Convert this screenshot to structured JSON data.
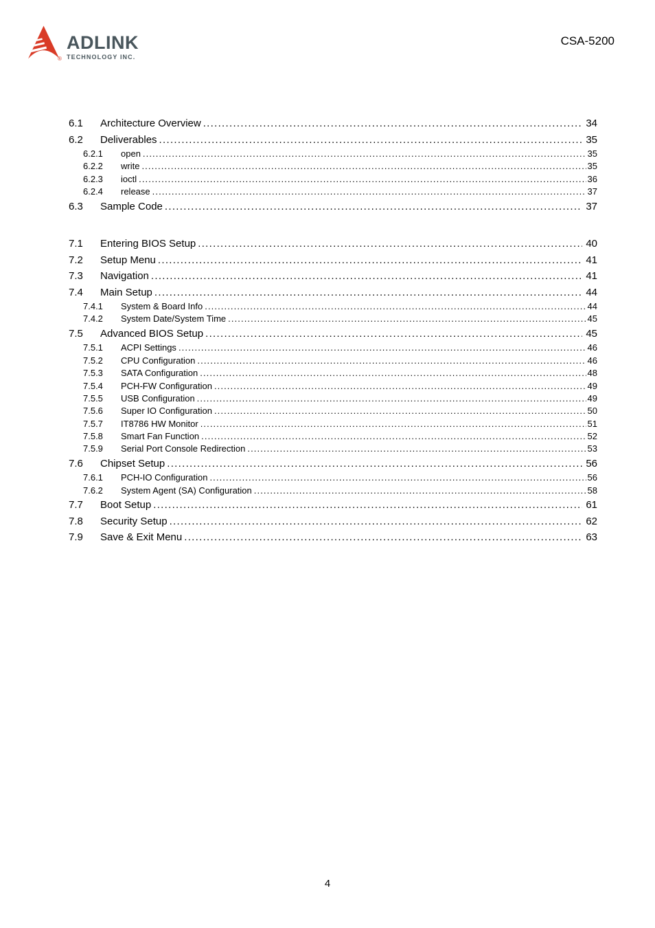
{
  "header": {
    "logo": {
      "brand": "ADLINK",
      "subbrand": "TECHNOLOGY INC.",
      "registered_mark": "®",
      "red": "#d93b27",
      "gray": "#49565c"
    },
    "doc_title": "CSA-5200"
  },
  "toc": {
    "groups": [
      {
        "entries": [
          {
            "level": 1,
            "number": "6.1",
            "title": "Architecture Overview",
            "page": "34"
          },
          {
            "level": 1,
            "number": "6.2",
            "title": "Deliverables",
            "page": "35"
          },
          {
            "level": 2,
            "number": "6.2.1",
            "title": "open",
            "page": "35"
          },
          {
            "level": 2,
            "number": "6.2.2",
            "title": "write",
            "page": "35"
          },
          {
            "level": 2,
            "number": "6.2.3",
            "title": "ioctl",
            "page": "36"
          },
          {
            "level": 2,
            "number": "6.2.4",
            "title": "release",
            "page": "37"
          },
          {
            "level": 1,
            "number": "6.3",
            "title": "Sample Code",
            "page": "37"
          }
        ]
      },
      {
        "entries": [
          {
            "level": 1,
            "number": "7.1",
            "title": "Entering BIOS Setup",
            "page": "40"
          },
          {
            "level": 1,
            "number": "7.2",
            "title": "Setup Menu",
            "page": "41"
          },
          {
            "level": 1,
            "number": "7.3",
            "title": "Navigation",
            "page": "41"
          },
          {
            "level": 1,
            "number": "7.4",
            "title": "Main Setup",
            "page": "44"
          },
          {
            "level": 2,
            "number": "7.4.1",
            "title": "System & Board Info",
            "page": "44"
          },
          {
            "level": 2,
            "number": "7.4.2",
            "title": "System Date/System Time",
            "page": "45"
          },
          {
            "level": 1,
            "number": "7.5",
            "title": "Advanced BIOS Setup",
            "page": "45"
          },
          {
            "level": 2,
            "number": "7.5.1",
            "title": "ACPI Settings",
            "page": "46"
          },
          {
            "level": 2,
            "number": "7.5.2",
            "title": "CPU Configuration",
            "page": "46"
          },
          {
            "level": 2,
            "number": "7.5.3",
            "title": "SATA Configuration",
            "page": "48"
          },
          {
            "level": 2,
            "number": "7.5.4",
            "title": "PCH-FW Configuration",
            "page": "49"
          },
          {
            "level": 2,
            "number": "7.5.5",
            "title": "USB Configuration",
            "page": "49"
          },
          {
            "level": 2,
            "number": "7.5.6",
            "title": "Super IO Configuration",
            "page": "50"
          },
          {
            "level": 2,
            "number": "7.5.7",
            "title": "IT8786 HW Monitor",
            "page": "51"
          },
          {
            "level": 2,
            "number": "7.5.8",
            "title": "Smart Fan Function",
            "page": "52"
          },
          {
            "level": 2,
            "number": "7.5.9",
            "title": "Serial Port Console Redirection",
            "page": "53"
          },
          {
            "level": 1,
            "number": "7.6",
            "title": "Chipset Setup",
            "page": "56"
          },
          {
            "level": 2,
            "number": "7.6.1",
            "title": "PCH-IO Configuration",
            "page": "56"
          },
          {
            "level": 2,
            "number": "7.6.2",
            "title": "System Agent (SA) Configuration",
            "page": "58"
          },
          {
            "level": 1,
            "number": "7.7",
            "title": "Boot Setup",
            "page": "61"
          },
          {
            "level": 1,
            "number": "7.8",
            "title": "Security Setup",
            "page": "62"
          },
          {
            "level": 1,
            "number": "7.9",
            "title": "Save & Exit Menu",
            "page": "63"
          }
        ]
      }
    ]
  },
  "footer": {
    "page_number": "4"
  }
}
